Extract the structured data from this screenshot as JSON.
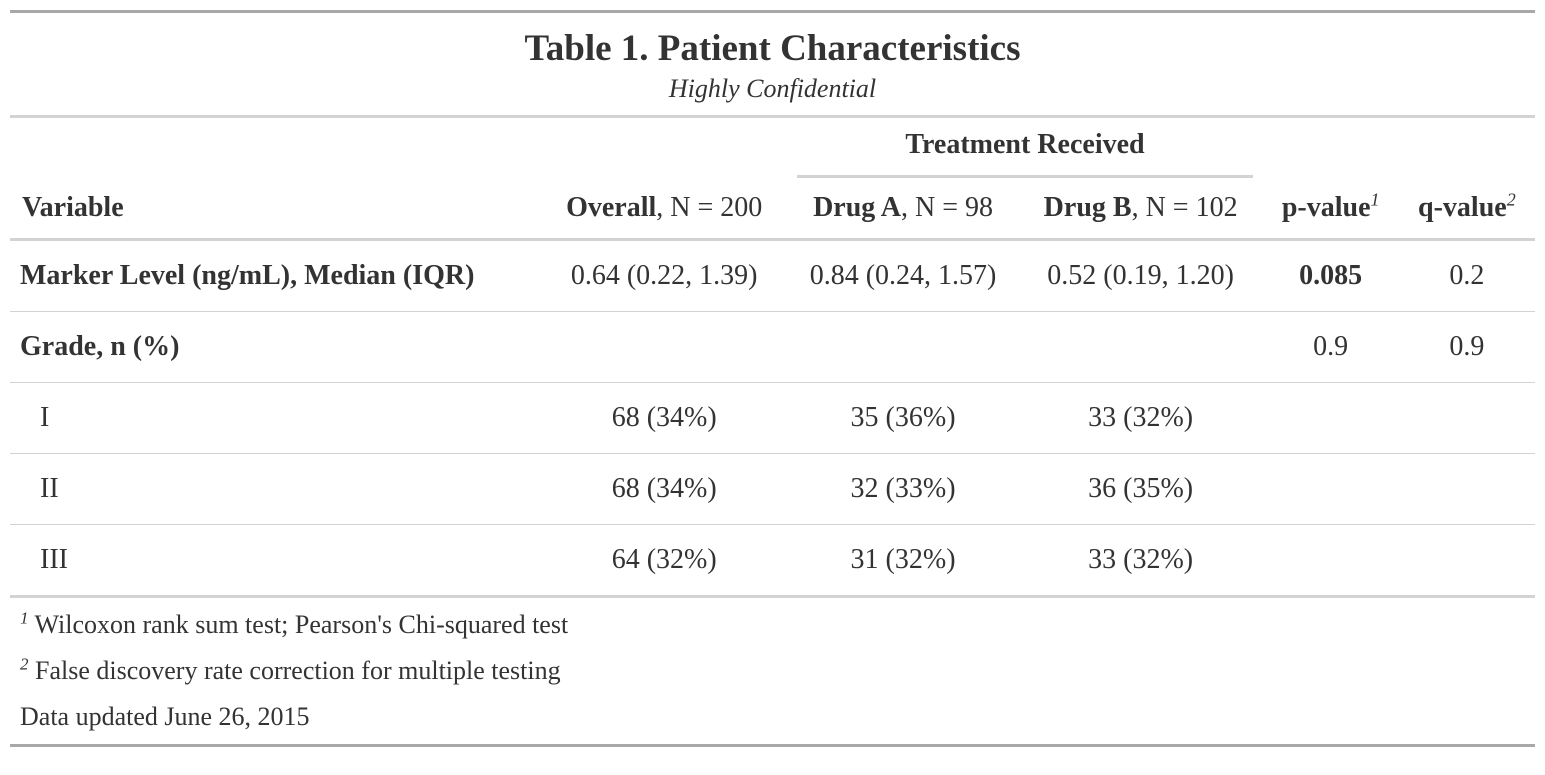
{
  "table": {
    "title": "Table 1. Patient Characteristics",
    "subtitle": "Highly Confidential",
    "spanner": "Treatment Received",
    "columns": {
      "variable": "Variable",
      "overall_bold": "Overall",
      "overall_n": ", N = 200",
      "drug_a_bold": "Drug A",
      "drug_a_n": ", N = 98",
      "drug_b_bold": "Drug B",
      "drug_b_n": ", N = 102",
      "p_value": "p-value",
      "p_value_mark": "1",
      "q_value": "q-value",
      "q_value_mark": "2"
    },
    "rows": [
      {
        "label": "Marker Level (ng/mL), Median (IQR)",
        "overall": "0.64 (0.22, 1.39)",
        "drug_a": "0.84 (0.24, 1.57)",
        "drug_b": "0.52 (0.19, 1.20)",
        "p_value": "0.085",
        "q_value": "0.2"
      },
      {
        "label": "Grade, n (%)",
        "overall": "",
        "drug_a": "",
        "drug_b": "",
        "p_value": "0.9",
        "q_value": "0.9"
      },
      {
        "label": "I",
        "overall": "68 (34%)",
        "drug_a": "35 (36%)",
        "drug_b": "33 (32%)",
        "p_value": "",
        "q_value": ""
      },
      {
        "label": "II",
        "overall": "68 (34%)",
        "drug_a": "32 (33%)",
        "drug_b": "36 (35%)",
        "p_value": "",
        "q_value": ""
      },
      {
        "label": "III",
        "overall": "64 (32%)",
        "drug_a": "31 (32%)",
        "drug_b": "33 (32%)",
        "p_value": "",
        "q_value": ""
      }
    ],
    "footnotes": [
      {
        "mark": "1",
        "text": "Wilcoxon rank sum test; Pearson's Chi-squared test"
      },
      {
        "mark": "2",
        "text": "False discovery rate correction for multiple testing"
      }
    ],
    "source_note": "Data updated June 26, 2015"
  }
}
